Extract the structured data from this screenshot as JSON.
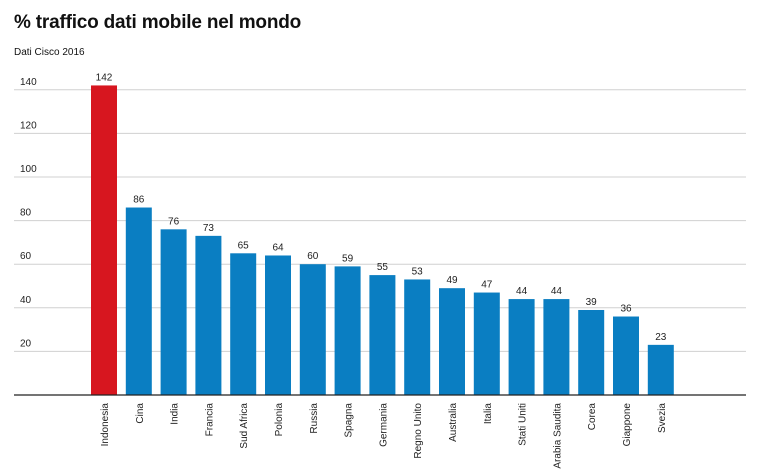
{
  "chart_data": {
    "type": "bar",
    "title": "% traffico dati mobile nel mondo",
    "subtitle": "Dati Cisco 2016",
    "categories": [
      "Indonesia",
      "Cina",
      "India",
      "Francia",
      "Sud Africa",
      "Polonia",
      "Russia",
      "Spagna",
      "Germania",
      "Regno Unito",
      "Australia",
      "Italia",
      "Stati Uniti",
      "Arabia Saudita",
      "Corea",
      "Giappone",
      "Svezia"
    ],
    "values": [
      142,
      86,
      76,
      73,
      65,
      64,
      60,
      59,
      55,
      53,
      49,
      47,
      44,
      44,
      39,
      36,
      23
    ],
    "highlight_index": 0,
    "colors": {
      "highlight": "#d7161f",
      "bar": "#0a7ec2",
      "grid": "#d0d0d0",
      "axis": "#222222"
    },
    "yticks": [
      20,
      40,
      60,
      80,
      100,
      120,
      140
    ],
    "ylim": [
      0,
      140
    ],
    "grid": true,
    "legend": "none",
    "xlabel": "",
    "ylabel": ""
  }
}
